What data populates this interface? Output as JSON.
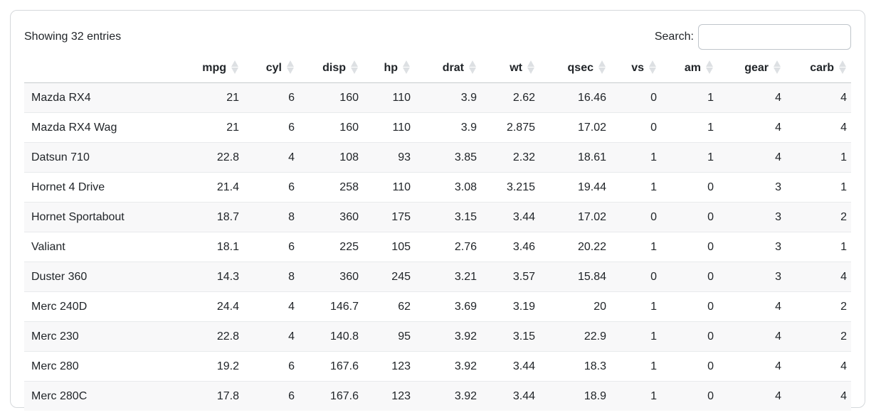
{
  "info_text": "Showing 32 entries",
  "search": {
    "label": "Search:",
    "value": "",
    "placeholder": ""
  },
  "table": {
    "rowname_header": "",
    "columns": [
      "mpg",
      "cyl",
      "disp",
      "hp",
      "drat",
      "wt",
      "qsec",
      "vs",
      "am",
      "gear",
      "carb"
    ],
    "rows": [
      {
        "name": "Mazda RX4",
        "values": [
          "21",
          "6",
          "160",
          "110",
          "3.9",
          "2.62",
          "16.46",
          "0",
          "1",
          "4",
          "4"
        ]
      },
      {
        "name": "Mazda RX4 Wag",
        "values": [
          "21",
          "6",
          "160",
          "110",
          "3.9",
          "2.875",
          "17.02",
          "0",
          "1",
          "4",
          "4"
        ]
      },
      {
        "name": "Datsun 710",
        "values": [
          "22.8",
          "4",
          "108",
          "93",
          "3.85",
          "2.32",
          "18.61",
          "1",
          "1",
          "4",
          "1"
        ]
      },
      {
        "name": "Hornet 4 Drive",
        "values": [
          "21.4",
          "6",
          "258",
          "110",
          "3.08",
          "3.215",
          "19.44",
          "1",
          "0",
          "3",
          "1"
        ]
      },
      {
        "name": "Hornet Sportabout",
        "values": [
          "18.7",
          "8",
          "360",
          "175",
          "3.15",
          "3.44",
          "17.02",
          "0",
          "0",
          "3",
          "2"
        ]
      },
      {
        "name": "Valiant",
        "values": [
          "18.1",
          "6",
          "225",
          "105",
          "2.76",
          "3.46",
          "20.22",
          "1",
          "0",
          "3",
          "1"
        ]
      },
      {
        "name": "Duster 360",
        "values": [
          "14.3",
          "8",
          "360",
          "245",
          "3.21",
          "3.57",
          "15.84",
          "0",
          "0",
          "3",
          "4"
        ]
      },
      {
        "name": "Merc 240D",
        "values": [
          "24.4",
          "4",
          "146.7",
          "62",
          "3.69",
          "3.19",
          "20",
          "1",
          "0",
          "4",
          "2"
        ]
      },
      {
        "name": "Merc 230",
        "values": [
          "22.8",
          "4",
          "140.8",
          "95",
          "3.92",
          "3.15",
          "22.9",
          "1",
          "0",
          "4",
          "2"
        ]
      },
      {
        "name": "Merc 280",
        "values": [
          "19.2",
          "6",
          "167.6",
          "123",
          "3.92",
          "3.44",
          "18.3",
          "1",
          "0",
          "4",
          "4"
        ]
      },
      {
        "name": "Merc 280C",
        "values": [
          "17.8",
          "6",
          "167.6",
          "123",
          "3.92",
          "3.44",
          "18.9",
          "1",
          "0",
          "4",
          "4"
        ]
      }
    ]
  },
  "icons": {
    "sort": "sort-both-icon"
  },
  "colors": {
    "text": "#212529",
    "stripe": "#f8f8f9",
    "card_border": "#d5d8db",
    "header_border": "#c7cbce",
    "row_border": "#e8eaec",
    "sort_icon": "#dde0e3",
    "input_border": "#bfc5cb"
  }
}
